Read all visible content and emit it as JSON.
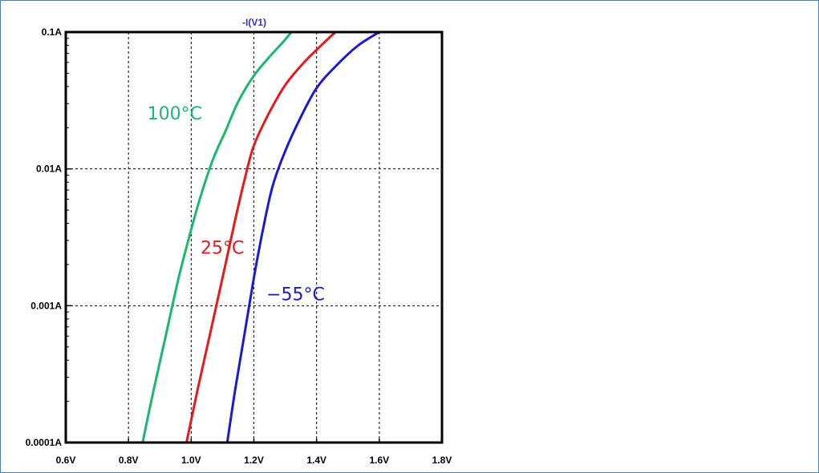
{
  "window": {
    "border_color": "#4a7fb0"
  },
  "chart_data": {
    "type": "line",
    "title": "-I(V1)",
    "title_color": "#2f2fd0",
    "xlabel": "",
    "ylabel": "",
    "x_scale": "linear",
    "y_scale": "log",
    "xlim": [
      0.6,
      1.8
    ],
    "ylim": [
      0.0001,
      0.1
    ],
    "grid": true,
    "x_ticks": [
      {
        "value": 0.6,
        "label": "0.6V"
      },
      {
        "value": 0.8,
        "label": "0.8V"
      },
      {
        "value": 1.0,
        "label": "1.0V"
      },
      {
        "value": 1.2,
        "label": "1.2V"
      },
      {
        "value": 1.4,
        "label": "1.4V"
      },
      {
        "value": 1.6,
        "label": "1.6V"
      },
      {
        "value": 1.8,
        "label": "1.8V"
      }
    ],
    "y_ticks": [
      {
        "value": 0.0001,
        "label": "0.0001A"
      },
      {
        "value": 0.001,
        "label": "0.001A"
      },
      {
        "value": 0.01,
        "label": "0.01A"
      },
      {
        "value": 0.1,
        "label": "0.1A"
      }
    ],
    "series": [
      {
        "name": "100°C",
        "color": "#19b86b",
        "points": [
          [
            0.845,
            0.0001
          ],
          [
            0.88,
            0.00024
          ],
          [
            0.92,
            0.00062
          ],
          [
            0.96,
            0.0016
          ],
          [
            1.0,
            0.0036
          ],
          [
            1.03,
            0.0063
          ],
          [
            1.07,
            0.0118
          ],
          [
            1.11,
            0.019
          ],
          [
            1.15,
            0.031
          ],
          [
            1.2,
            0.048
          ],
          [
            1.25,
            0.066
          ],
          [
            1.29,
            0.083
          ],
          [
            1.32,
            0.1
          ]
        ]
      },
      {
        "name": "25°C",
        "color": "#e81919",
        "points": [
          [
            0.985,
            0.0001
          ],
          [
            1.02,
            0.00024
          ],
          [
            1.06,
            0.00062
          ],
          [
            1.1,
            0.0016
          ],
          [
            1.14,
            0.0042
          ],
          [
            1.17,
            0.0083
          ],
          [
            1.2,
            0.0148
          ],
          [
            1.25,
            0.026
          ],
          [
            1.3,
            0.041
          ],
          [
            1.36,
            0.06
          ],
          [
            1.42,
            0.082
          ],
          [
            1.46,
            0.1
          ]
        ]
      },
      {
        "name": "−55°C",
        "color": "#1a1ad6",
        "points": [
          [
            1.115,
            0.0001
          ],
          [
            1.14,
            0.00024
          ],
          [
            1.17,
            0.00062
          ],
          [
            1.2,
            0.0016
          ],
          [
            1.23,
            0.0037
          ],
          [
            1.26,
            0.0075
          ],
          [
            1.3,
            0.0135
          ],
          [
            1.35,
            0.024
          ],
          [
            1.4,
            0.039
          ],
          [
            1.46,
            0.056
          ],
          [
            1.53,
            0.079
          ],
          [
            1.6,
            0.1
          ]
        ]
      }
    ],
    "annotations": [
      {
        "text": "100°C",
        "color": "#19b86b",
        "x": 0.86,
        "y": 0.023
      },
      {
        "text": "25°C",
        "color": "#e81919",
        "x": 1.03,
        "y": 0.0024
      },
      {
        "text": "−55°C",
        "color": "#1a1ad6",
        "x": 1.24,
        "y": 0.0011
      }
    ]
  }
}
